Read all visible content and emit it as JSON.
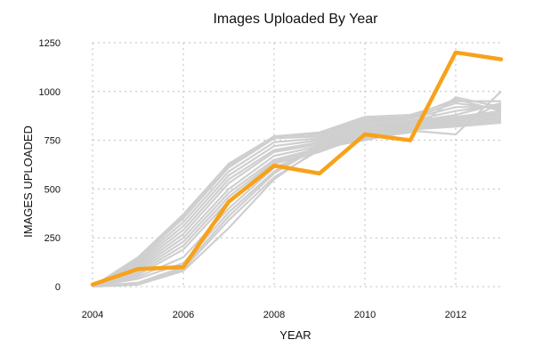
{
  "chart_data": {
    "type": "line",
    "title": "Images Uploaded By Year",
    "xlabel": "YEAR",
    "ylabel": "IMAGES UPLOADED",
    "xlim": [
      2004,
      2013
    ],
    "ylim": [
      0,
      1250
    ],
    "x_ticks": [
      2004,
      2006,
      2008,
      2010,
      2012
    ],
    "y_ticks": [
      0,
      250,
      500,
      750,
      1000,
      1250
    ],
    "grid": true,
    "colors": {
      "highlight": "#F7A21B",
      "background_series": "#cfcfcf"
    },
    "x": [
      2004,
      2005,
      2006,
      2007,
      2008,
      2009,
      2010,
      2011,
      2012,
      2013
    ],
    "highlight_series": {
      "values": [
        10,
        90,
        100,
        435,
        620,
        580,
        780,
        750,
        1200,
        1165
      ]
    },
    "background_series": [
      {
        "values": [
          0,
          150,
          370,
          630,
          770,
          780,
          860,
          870,
          960,
          900
        ]
      },
      {
        "values": [
          0,
          140,
          350,
          610,
          760,
          770,
          850,
          865,
          940,
          910
        ]
      },
      {
        "values": [
          0,
          130,
          330,
          590,
          740,
          760,
          840,
          860,
          920,
          920
        ]
      },
      {
        "values": [
          0,
          120,
          310,
          570,
          720,
          750,
          830,
          850,
          900,
          930
        ]
      },
      {
        "values": [
          0,
          110,
          290,
          550,
          700,
          740,
          820,
          845,
          880,
          940
        ]
      },
      {
        "values": [
          0,
          100,
          270,
          530,
          690,
          730,
          810,
          840,
          870,
          900
        ]
      },
      {
        "values": [
          0,
          90,
          250,
          500,
          670,
          720,
          800,
          835,
          860,
          880
        ]
      },
      {
        "values": [
          0,
          80,
          230,
          480,
          650,
          710,
          790,
          830,
          850,
          870
        ]
      },
      {
        "values": [
          0,
          70,
          210,
          460,
          640,
          700,
          780,
          825,
          840,
          860
        ]
      },
      {
        "values": [
          0,
          60,
          190,
          440,
          630,
          690,
          775,
          820,
          830,
          850
        ]
      },
      {
        "values": [
          0,
          50,
          150,
          400,
          610,
          700,
          770,
          815,
          860,
          890
        ]
      },
      {
        "values": [
          0,
          10,
          90,
          340,
          560,
          700,
          760,
          810,
          830,
          940
        ]
      },
      {
        "values": [
          0,
          10,
          80,
          300,
          550,
          710,
          750,
          800,
          780,
          1000
        ]
      },
      {
        "values": [
          0,
          20,
          100,
          360,
          580,
          720,
          760,
          790,
          970,
          920
        ]
      },
      {
        "values": [
          0,
          40,
          120,
          380,
          590,
          730,
          765,
          805,
          820,
          840
        ]
      },
      {
        "values": [
          0,
          140,
          360,
          620,
          770,
          790,
          870,
          880,
          950,
          950
        ]
      }
    ]
  }
}
